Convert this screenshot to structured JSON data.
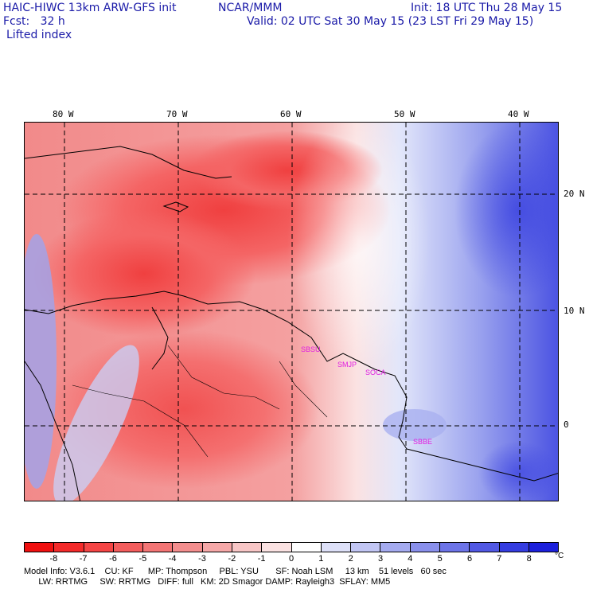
{
  "header": {
    "title_left": "HAIC-HIWC 13km ARW-GFS init",
    "agency": "NCAR/MMM",
    "init": "Init: 18 UTC Thu 28 May 15",
    "fcst": "Fcst:   32 h",
    "valid": "Valid: 02 UTC Sat 30 May 15 (23 LST Fri 29 May 15)",
    "field": "Lifted index"
  },
  "axes": {
    "lon_labels": [
      "80 W",
      "70 W",
      "60 W",
      "50 W",
      "40 W"
    ],
    "lat_labels": [
      "20 N",
      "10 N",
      "0"
    ]
  },
  "cities": [
    "SBSU",
    "SMJP",
    "SOCA",
    "SBBE"
  ],
  "colorbar": {
    "ticks": [
      "-8",
      "-7",
      "-6",
      "-5",
      "-4",
      "-3",
      "-2",
      "-1",
      "0",
      "1",
      "2",
      "3",
      "4",
      "5",
      "6",
      "7",
      "8"
    ],
    "unit": "°C",
    "colors": [
      "#f01010",
      "#f42a2a",
      "#f54545",
      "#f45d5d",
      "#f47575",
      "#f48e8e",
      "#f6a8a8",
      "#f8c6c6",
      "#fbe2e2",
      "#ffffff",
      "#dde0f8",
      "#c2c6f4",
      "#a5abf0",
      "#8a90ec",
      "#6d74e8",
      "#5158e4",
      "#343ce0",
      "#1c20dc"
    ]
  },
  "footer": {
    "line1": "Model Info: V3.6.1    CU: KF      MP: Thompson     PBL: YSU       SF: Noah LSM     13 km    51 levels   60 sec",
    "line2": "      LW: RRTMG     SW: RRTMG   DIFF: full   KM: 2D Smagor DAMP: Rayleigh3  SFLAY: MM5"
  }
}
